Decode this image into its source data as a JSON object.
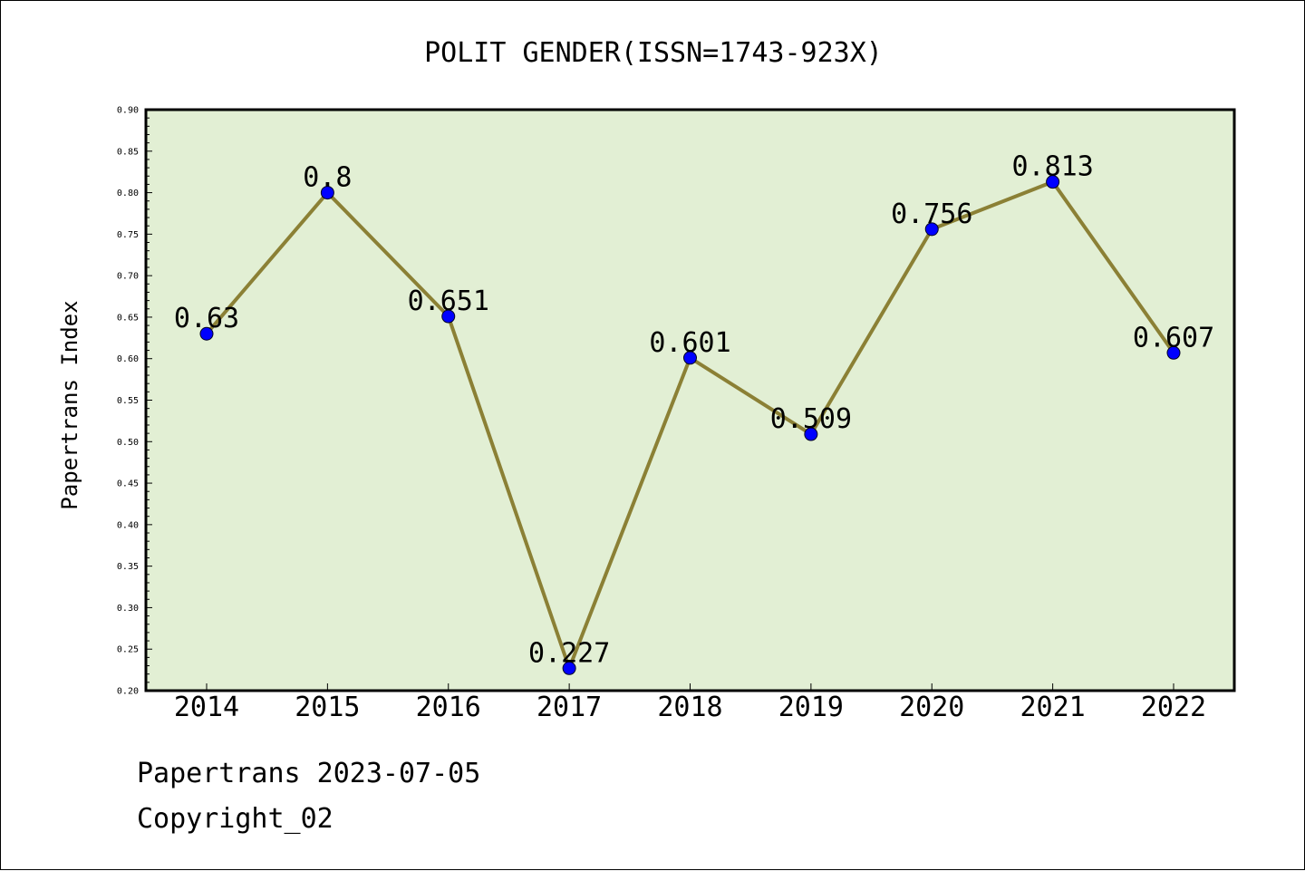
{
  "chart_data": {
    "type": "line",
    "title": "POLIT GENDER(ISSN=1743-923X)",
    "ylabel": "Papertrans Index",
    "xlabel": "",
    "categories": [
      "2014",
      "2015",
      "2016",
      "2017",
      "2018",
      "2019",
      "2020",
      "2021",
      "2022"
    ],
    "series": [
      {
        "values": [
          0.63,
          0.8,
          0.651,
          0.227,
          0.601,
          0.509,
          0.756,
          0.813,
          0.607
        ],
        "labels": [
          "0.63",
          "0.8",
          "0.651",
          "0.227",
          "0.601",
          "0.509",
          "0.756",
          "0.813",
          "0.607"
        ]
      }
    ],
    "ylim": [
      0.2,
      0.9
    ],
    "yticks": [
      "0.20",
      "0.25",
      "0.30",
      "0.35",
      "0.40",
      "0.45",
      "0.50",
      "0.55",
      "0.60",
      "0.65",
      "0.70",
      "0.75",
      "0.80",
      "0.85",
      "0.90"
    ],
    "grid": false,
    "colors": {
      "plot_background": "#e2efd4",
      "line": "#8b8035",
      "marker": "#0000ff"
    }
  },
  "footer": {
    "line1": "Papertrans 2023-07-05",
    "line2": "Copyright_02"
  }
}
